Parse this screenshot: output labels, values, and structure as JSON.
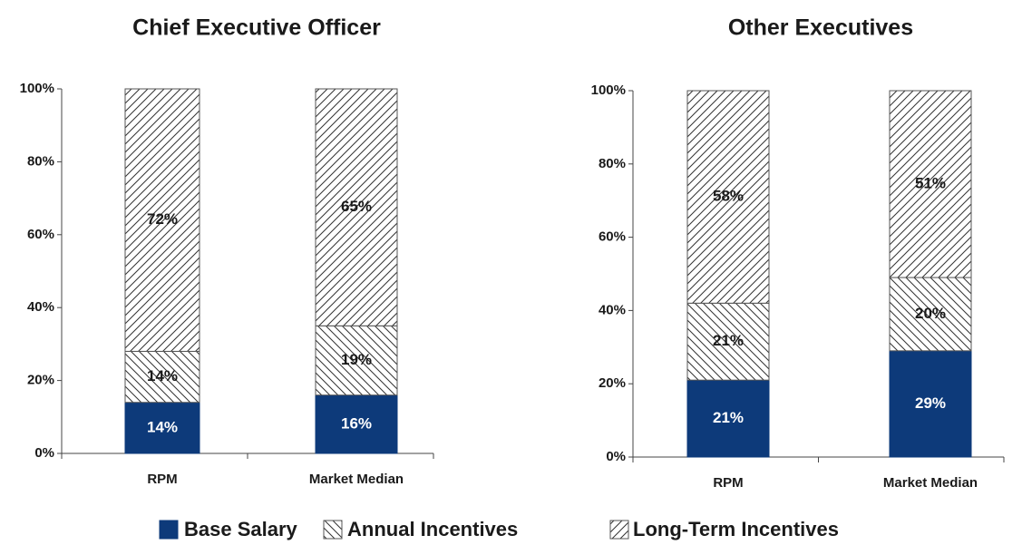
{
  "chart_data": [
    {
      "type": "bar",
      "stacked": true,
      "title": "Chief Executive Officer",
      "categories": [
        "RPM",
        "Market Median"
      ],
      "series": [
        {
          "name": "Base Salary",
          "color": "#0d3a7a",
          "pattern": "solid",
          "values": [
            14,
            16
          ],
          "value_labels": [
            "14%",
            "16%"
          ]
        },
        {
          "name": "Annual Incentives",
          "color": "#333333",
          "pattern": "backslash",
          "values": [
            14,
            19
          ],
          "value_labels": [
            "14%",
            "19%"
          ]
        },
        {
          "name": "Long-Term Incentives",
          "color": "#333333",
          "pattern": "slash",
          "values": [
            72,
            65
          ],
          "value_labels": [
            "72%",
            "65%"
          ]
        }
      ],
      "ylim": [
        0,
        100
      ],
      "yticks": [
        {
          "value": 0,
          "label": "0%"
        },
        {
          "value": 20,
          "label": "20%"
        },
        {
          "value": 40,
          "label": "40%"
        },
        {
          "value": 60,
          "label": "60%"
        },
        {
          "value": 80,
          "label": "80%"
        },
        {
          "value": 100,
          "label": "100%"
        }
      ]
    },
    {
      "type": "bar",
      "stacked": true,
      "title": "Other Executives",
      "categories": [
        "RPM",
        "Market Median"
      ],
      "series": [
        {
          "name": "Base Salary",
          "color": "#0d3a7a",
          "pattern": "solid",
          "values": [
            21,
            29
          ],
          "value_labels": [
            "21%",
            "29%"
          ]
        },
        {
          "name": "Annual Incentives",
          "color": "#333333",
          "pattern": "backslash",
          "values": [
            21,
            20
          ],
          "value_labels": [
            "21%",
            "20%"
          ]
        },
        {
          "name": "Long-Term Incentives",
          "color": "#333333",
          "pattern": "slash",
          "values": [
            58,
            51
          ],
          "value_labels": [
            "58%",
            "51%"
          ]
        }
      ],
      "ylim": [
        0,
        100
      ],
      "yticks": [
        {
          "value": 0,
          "label": "0%"
        },
        {
          "value": 20,
          "label": "20%"
        },
        {
          "value": 40,
          "label": "40%"
        },
        {
          "value": 60,
          "label": "60%"
        },
        {
          "value": 80,
          "label": "80%"
        },
        {
          "value": 100,
          "label": "100%"
        }
      ]
    }
  ]
}
